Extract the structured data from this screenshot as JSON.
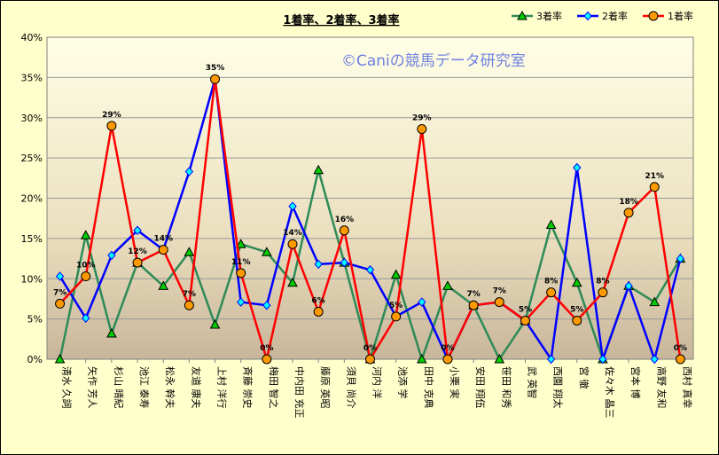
{
  "chart_data": {
    "type": "line",
    "title": "1着率、2着率、3着率",
    "watermark": "©Caniの競馬データ研究室",
    "ylim": [
      0,
      40
    ],
    "yticks": [
      "0%",
      "5%",
      "10%",
      "15%",
      "20%",
      "25%",
      "30%",
      "35%",
      "40%"
    ],
    "categories": [
      "清水 久詞",
      "矢作 芳人",
      "杉山 晴紀",
      "池江 泰寿",
      "松永 幹夫",
      "友道 康夫",
      "上村 洋行",
      "斉藤 崇史",
      "梅田 智之",
      "中内田 充正",
      "藤原 英昭",
      "須貝 尚介",
      "河内 洋",
      "池添 学",
      "田中 克典",
      "小栗 実",
      "安田 翔伍",
      "笹田 和秀",
      "武 英智",
      "西園 翔太",
      "宮 徹",
      "佐々木 晶三",
      "宮本 博",
      "高野 友和",
      "西村 真幸"
    ],
    "series": [
      {
        "name": "3着率",
        "color": "#2E8B57",
        "marker": "triangle",
        "marker_color": "#00CC00",
        "values": [
          0,
          15.4,
          3.2,
          12.0,
          9.1,
          13.3,
          4.3,
          14.3,
          13.3,
          9.5,
          23.5,
          12.0,
          0,
          10.5,
          0,
          9.1,
          6.7,
          0,
          4.8,
          16.7,
          9.5,
          0,
          9.1,
          7.1,
          12.5
        ]
      },
      {
        "name": "2着率",
        "color": "#0000FF",
        "marker": "diamond",
        "marker_color": "#00FFFF",
        "values": [
          10.3,
          5.1,
          12.9,
          16.0,
          13.6,
          23.3,
          34.8,
          7.1,
          6.7,
          19.0,
          11.8,
          12.0,
          11.1,
          5.3,
          7.1,
          0,
          6.7,
          7.1,
          4.8,
          0,
          23.8,
          0,
          9.1,
          0,
          12.5
        ]
      },
      {
        "name": "1着率",
        "color": "#FF0000",
        "marker": "circle",
        "marker_color": "#FF9900",
        "values": [
          6.9,
          10.3,
          29.0,
          12.0,
          13.6,
          6.7,
          34.8,
          10.7,
          0,
          14.3,
          5.9,
          16.0,
          0,
          5.3,
          28.6,
          0,
          6.7,
          7.1,
          4.8,
          8.3,
          4.8,
          8.3,
          18.2,
          21.4,
          0
        ],
        "data_labels": [
          "7%",
          "10%",
          "29%",
          "12%",
          "14%",
          "7%",
          "35%",
          "11%",
          "0%",
          "14%",
          "6%",
          "16%",
          "0%",
          "5%",
          "29%",
          "0%",
          "7%",
          "7%",
          "5%",
          "8%",
          "5%",
          "8%",
          "18%",
          "21%",
          "0%"
        ]
      }
    ],
    "legend_position": "top-right",
    "grid": true
  }
}
